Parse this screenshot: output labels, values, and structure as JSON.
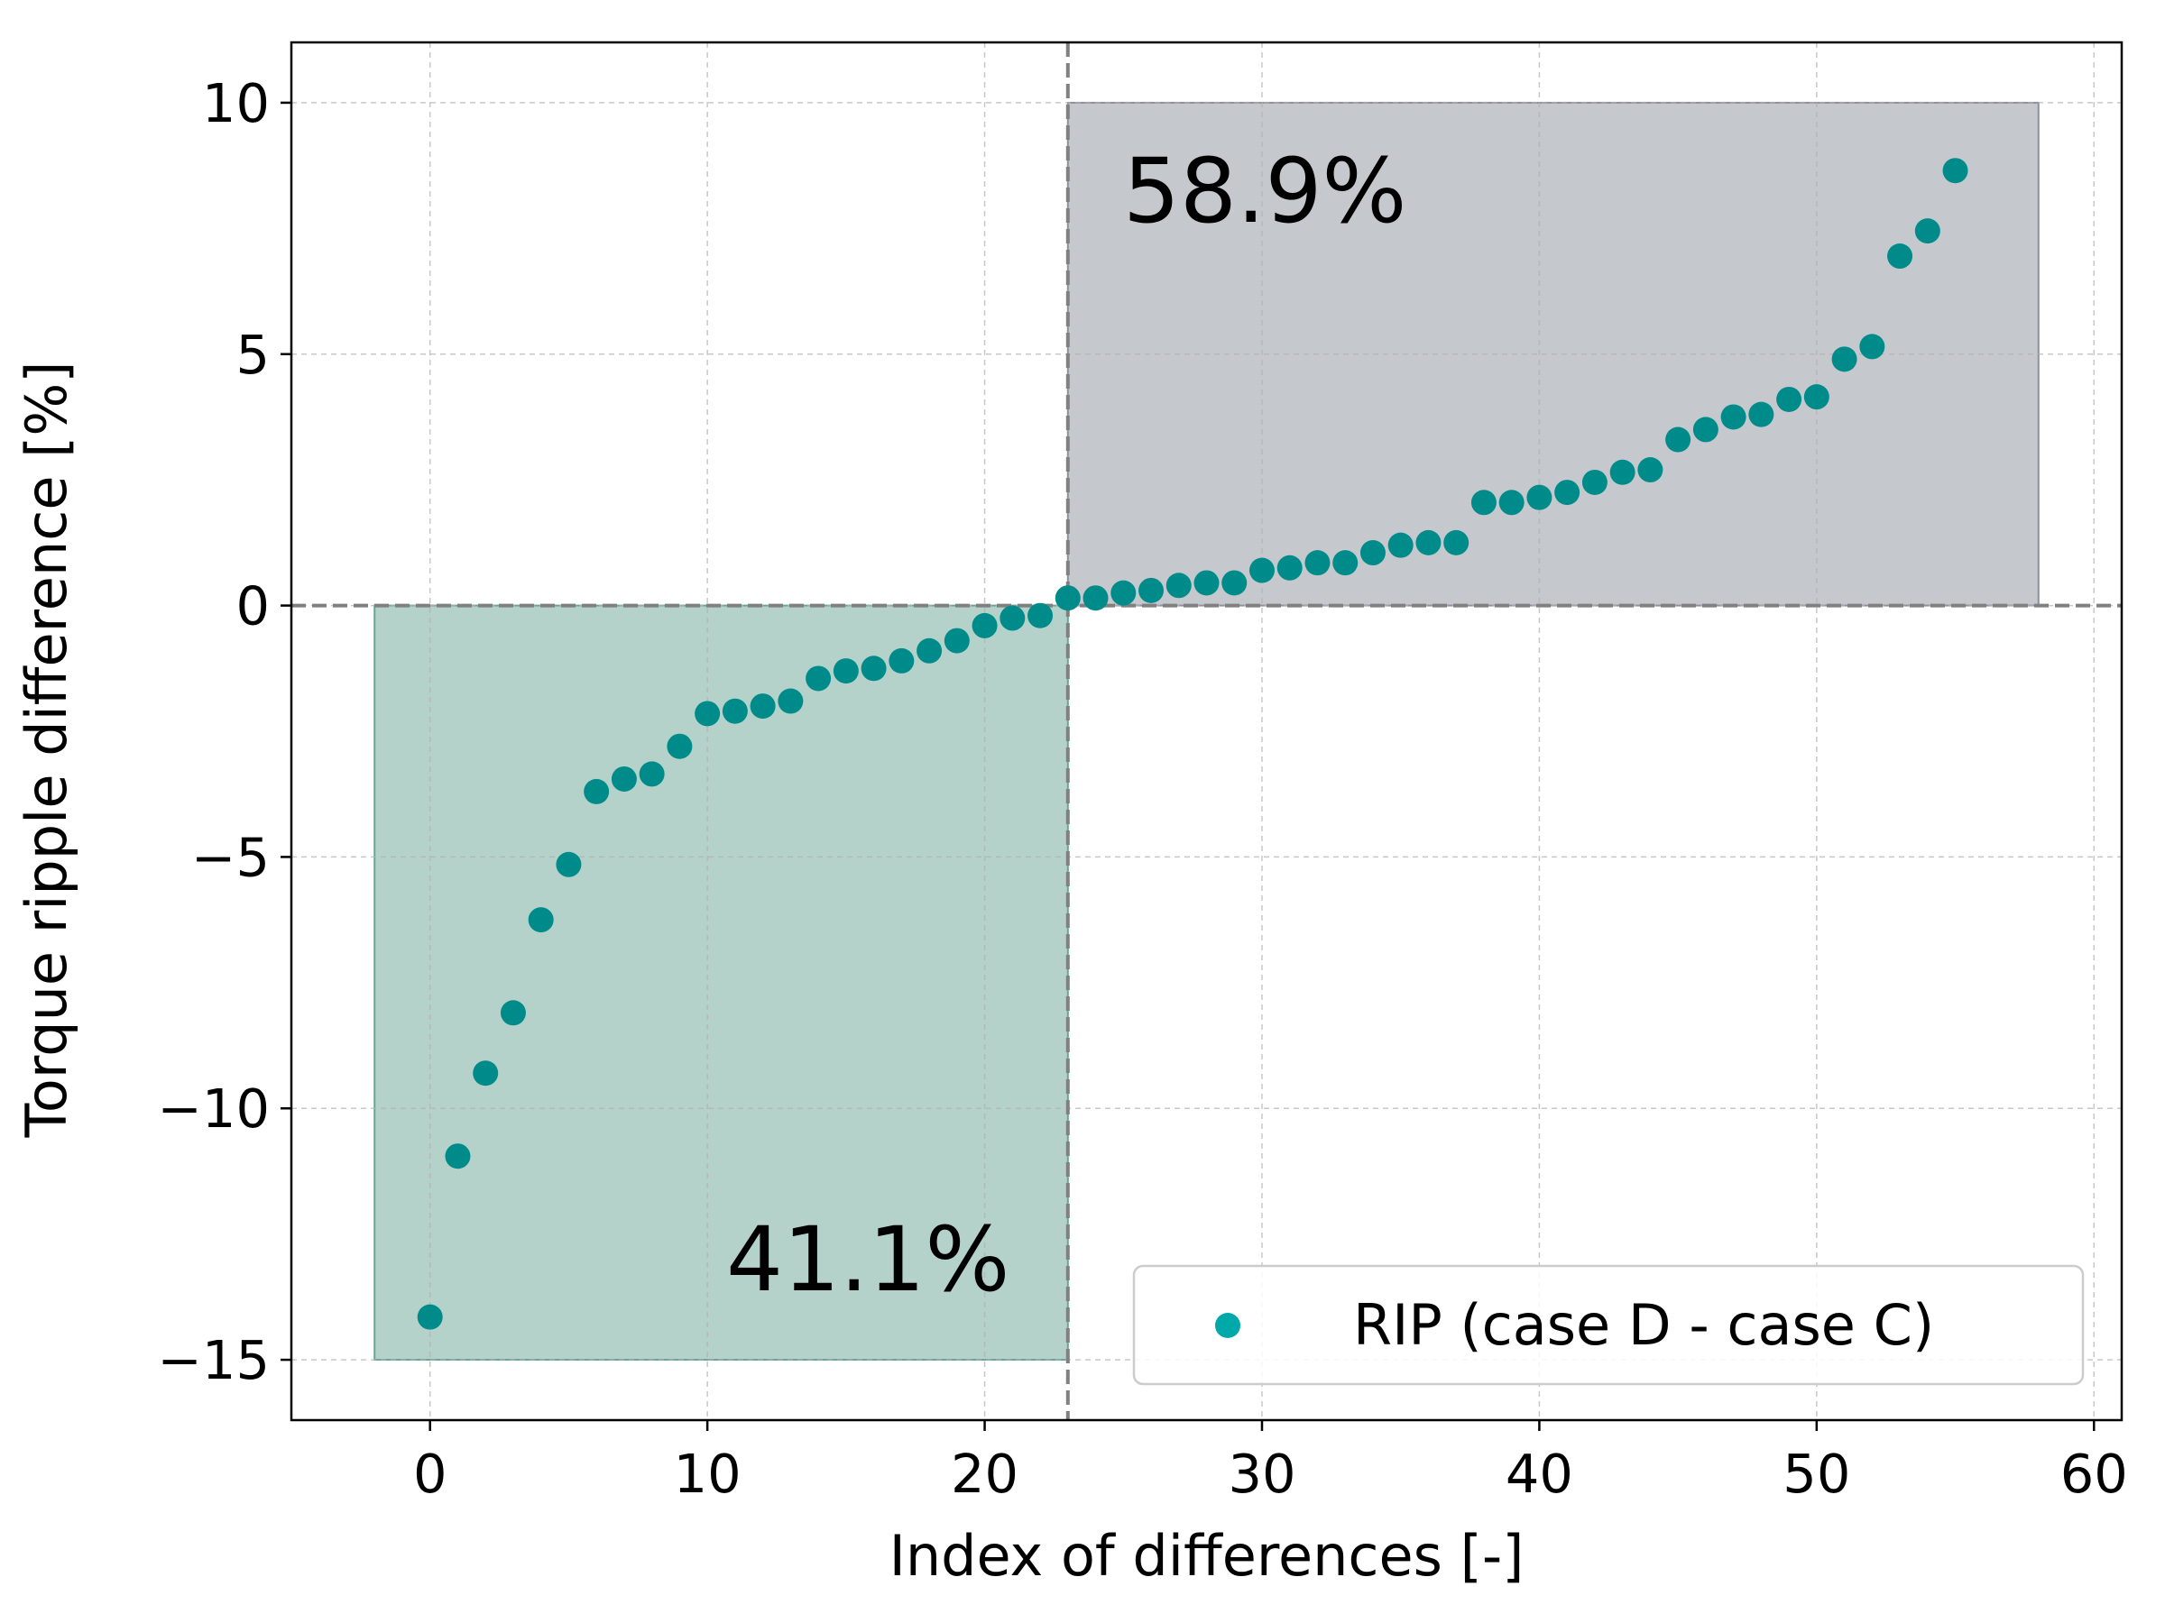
{
  "chart_data": {
    "type": "scatter",
    "xlabel": "Index of differences [-]",
    "ylabel": "Torque ripple difference [%]",
    "xlim": [
      -5,
      61
    ],
    "ylim": [
      -16.2,
      11.2
    ],
    "xticks": [
      0,
      10,
      20,
      30,
      40,
      50,
      60
    ],
    "yticks": [
      -15,
      -10,
      -5,
      0,
      5,
      10
    ],
    "xtick_labels": [
      "0",
      "10",
      "20",
      "30",
      "40",
      "50",
      "60"
    ],
    "ytick_labels": [
      "−15",
      "−10",
      "−5",
      "0",
      "5",
      "10"
    ],
    "grid": true,
    "series": [
      {
        "name": "RIP (case D - case C)",
        "color": "#008b8b",
        "legend_color": "#00a9a9",
        "x": [
          0,
          1,
          2,
          3,
          4,
          5,
          6,
          7,
          8,
          9,
          10,
          11,
          12,
          13,
          14,
          15,
          16,
          17,
          18,
          19,
          20,
          21,
          22,
          23,
          24,
          25,
          26,
          27,
          28,
          29,
          30,
          31,
          32,
          33,
          34,
          35,
          36,
          37,
          38,
          39,
          40,
          41,
          42,
          43,
          44,
          45,
          46,
          47,
          48,
          49,
          50,
          51,
          52,
          53,
          54,
          55
        ],
        "y": [
          -14.15,
          -10.95,
          -9.3,
          -8.1,
          -6.25,
          -5.15,
          -3.7,
          -3.45,
          -3.35,
          -2.8,
          -2.15,
          -2.1,
          -2.0,
          -1.9,
          -1.45,
          -1.3,
          -1.25,
          -1.1,
          -0.9,
          -0.7,
          -0.4,
          -0.25,
          -0.2,
          0.15,
          0.15,
          0.25,
          0.3,
          0.4,
          0.45,
          0.45,
          0.7,
          0.75,
          0.85,
          0.85,
          1.05,
          1.2,
          1.25,
          1.25,
          2.05,
          2.05,
          2.15,
          2.25,
          2.45,
          2.65,
          2.7,
          3.3,
          3.5,
          3.75,
          3.8,
          4.1,
          4.15,
          4.9,
          5.15,
          6.95,
          7.45,
          8.65
        ]
      }
    ],
    "reference_lines": {
      "x": 23,
      "y": 0,
      "color": "#808080",
      "style": "dashed"
    },
    "regions": [
      {
        "name": "negative",
        "x": [
          -2,
          23
        ],
        "y": [
          -15,
          0
        ],
        "color": "#69a596",
        "label": "41.1%"
      },
      {
        "name": "positive",
        "x": [
          23,
          58
        ],
        "y": [
          0,
          10
        ],
        "color": "#8c919c",
        "label": "58.9%"
      }
    ],
    "legend": {
      "position": "lower-right",
      "entries": [
        "RIP (case D - case C)"
      ]
    }
  }
}
